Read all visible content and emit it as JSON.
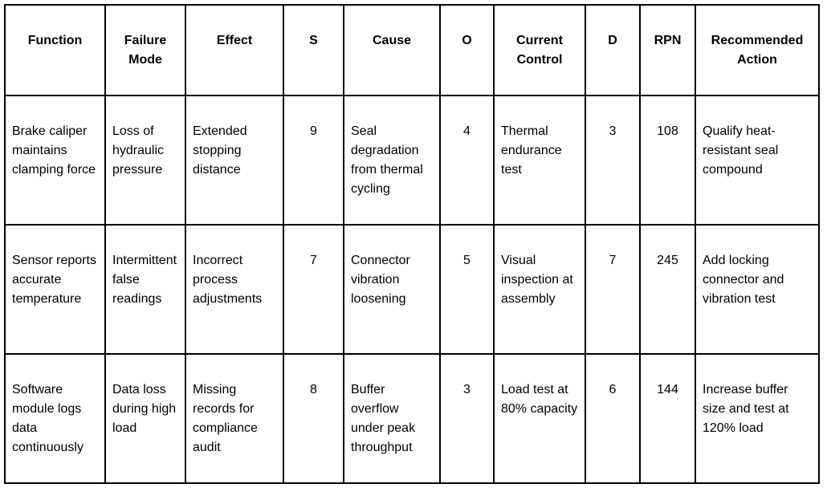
{
  "columns": [
    "Function",
    "Failure Mode",
    "Effect",
    "S",
    "Cause",
    "O",
    "Current Control",
    "D",
    "RPN",
    "Recommended Action"
  ],
  "rows": [
    {
      "function": "Brake caliper maintains clamping force",
      "failure_mode": "Loss of hydraulic pressure",
      "effect": "Extended stopping distance",
      "s": "9",
      "cause": "Seal degradation from thermal cycling",
      "o": "4",
      "current_control": "Thermal endurance test",
      "d": "3",
      "rpn": "108",
      "recommended_action": "Qualify heat-resistant seal compound"
    },
    {
      "function": "Sensor reports accurate temperature",
      "failure_mode": "Intermittent false readings",
      "effect": "Incorrect process adjustments",
      "s": "7",
      "cause": "Connector vibration loosening",
      "o": "5",
      "current_control": "Visual inspection at assembly",
      "d": "7",
      "rpn": "245",
      "recommended_action": "Add locking connector and vibration test"
    },
    {
      "function": "Software module logs data continuously",
      "failure_mode": "Data loss during high load",
      "effect": "Missing records for compliance audit",
      "s": "8",
      "cause": "Buffer overflow under peak throughput",
      "o": "3",
      "current_control": "Load test at 80% capacity",
      "d": "6",
      "rpn": "144",
      "recommended_action": "Increase buffer size and test at 120% load"
    }
  ]
}
